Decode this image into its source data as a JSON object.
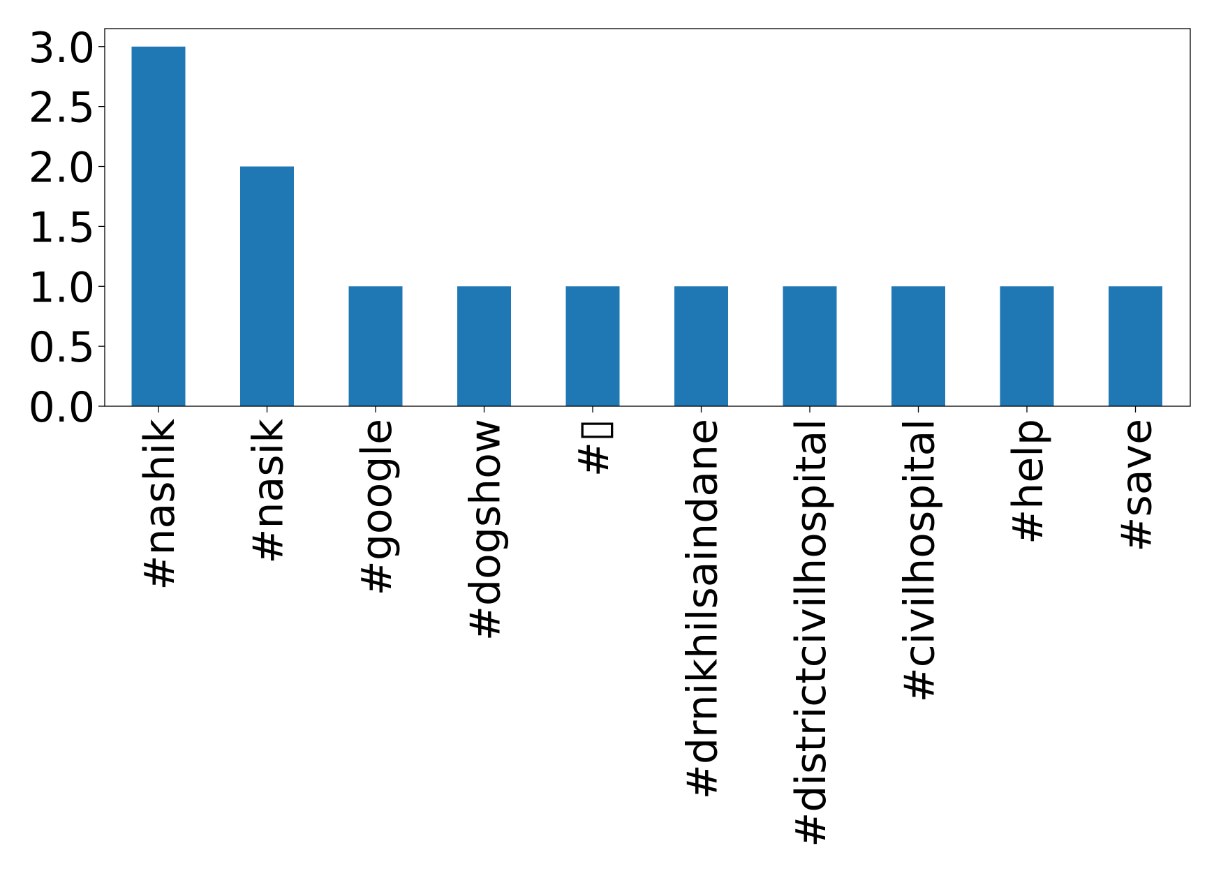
{
  "chart_data": {
    "type": "bar",
    "categories": [
      "#nashik",
      "#nasik",
      "#google",
      "#dogshow",
      "#▯",
      "#drnikhilsaindane",
      "#districtcivilhospital",
      "#civilhospital",
      "#help",
      "#save"
    ],
    "values": [
      3,
      2,
      1,
      1,
      1,
      1,
      1,
      1,
      1,
      1
    ],
    "title": "",
    "xlabel": "",
    "ylabel": "",
    "ylim": [
      0,
      3.15
    ],
    "yticks": [
      "0.0",
      "0.5",
      "1.0",
      "1.5",
      "2.0",
      "2.5",
      "3.0"
    ],
    "grid": false,
    "legend": "none",
    "bar_color": "#1f77b4",
    "axes_color": "#000000"
  }
}
